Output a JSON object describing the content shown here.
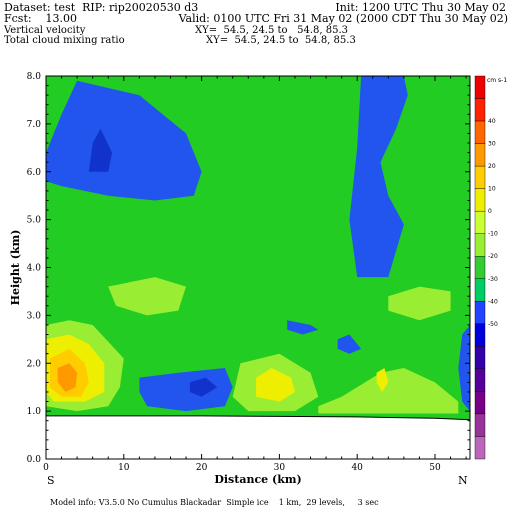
{
  "header": {
    "dataset": "Dataset: test  RIP: rip20020530 d3",
    "init": "Init: 1200 UTC Thu 30 May 02",
    "fcst": "Fcst:    13.00",
    "valid": "Valid: 0100 UTC Fri 31 May 02 (2000 CDT Thu 30 May 02)",
    "field1": "Vertical velocity",
    "xy1": "XY=  54.5, 24.5 to   54.8, 85.3",
    "field2": "Total cloud mixing ratio",
    "xy2": "XY=  54.5, 24.5 to  54.8, 85.3"
  },
  "footer": "Model info: V3.5.0 No Cumulus Blackadar  Simple ice    1 km,  29 levels,     3 sec",
  "colors": {
    "frame": "#000000",
    "terrain": "#ffffff",
    "background_field": "#22cc22"
  },
  "chart_data": {
    "type": "heatmap",
    "title": "Vertical velocity / Total cloud mixing ratio",
    "xlabel": "Distance (km)",
    "ylabel": "Height (km)",
    "xlim": [
      0,
      54.5
    ],
    "ylim": [
      0,
      8
    ],
    "x_ticks": [
      "0",
      "10",
      "20",
      "30",
      "40",
      "50"
    ],
    "y_ticks": [
      "0.0",
      "1.0",
      "2.0",
      "3.0",
      "4.0",
      "5.0",
      "6.0",
      "7.0",
      "8.0"
    ],
    "x_end_labels": {
      "left": "S",
      "right": "N"
    },
    "colorbar": {
      "units": "cm s-1",
      "labels": [
        "40",
        "30",
        "20",
        "10",
        "0",
        "-10",
        "-20",
        "-30",
        "-40",
        "-50"
      ],
      "colors": [
        "#ee0000",
        "#ff2200",
        "#ff6600",
        "#ff9900",
        "#ffcc00",
        "#eeee00",
        "#ccff33",
        "#99ee33",
        "#33cc33",
        "#00cc66",
        "#2244ff",
        "#0000dd",
        "#3300aa",
        "#550099",
        "#770088",
        "#993399",
        "#bb66bb"
      ]
    },
    "regions": [
      {
        "name": "downdraft-upper-left",
        "value": -15,
        "color": "#2255ee",
        "points": [
          [
            0,
            6.4
          ],
          [
            2,
            7.2
          ],
          [
            4,
            7.9
          ],
          [
            12,
            7.6
          ],
          [
            18,
            6.8
          ],
          [
            20,
            6.0
          ],
          [
            19,
            5.5
          ],
          [
            14,
            5.4
          ],
          [
            8,
            5.5
          ],
          [
            2,
            5.7
          ],
          [
            0,
            5.8
          ]
        ]
      },
      {
        "name": "downdraft-core-upper-left",
        "value": -25,
        "color": "#1133cc",
        "points": [
          [
            5.5,
            6.0
          ],
          [
            6,
            6.6
          ],
          [
            7,
            6.9
          ],
          [
            8.5,
            6.4
          ],
          [
            8,
            6.0
          ]
        ]
      },
      {
        "name": "downdraft-upper-right",
        "value": -15,
        "color": "#2255ee",
        "points": [
          [
            40.5,
            8.0
          ],
          [
            46,
            8.0
          ],
          [
            46.5,
            7.6
          ],
          [
            45,
            6.9
          ],
          [
            43,
            6.2
          ],
          [
            44,
            5.5
          ],
          [
            46,
            4.9
          ],
          [
            44,
            3.8
          ],
          [
            40,
            3.8
          ],
          [
            39,
            5.0
          ],
          [
            40,
            6.5
          ]
        ]
      },
      {
        "name": "updraft-weak-left",
        "value": 5,
        "color": "#99ee33",
        "points": [
          [
            8,
            3.6
          ],
          [
            14,
            3.8
          ],
          [
            18,
            3.6
          ],
          [
            17,
            3.1
          ],
          [
            13,
            3.0
          ],
          [
            9,
            3.2
          ]
        ]
      },
      {
        "name": "updraft-weak-right",
        "value": 5,
        "color": "#99ee33",
        "points": [
          [
            44,
            3.4
          ],
          [
            48,
            3.6
          ],
          [
            52,
            3.5
          ],
          [
            52,
            3.1
          ],
          [
            48,
            2.9
          ],
          [
            44,
            3.1
          ]
        ]
      },
      {
        "name": "updraft-low-left-outer",
        "value": 5,
        "color": "#99ee33",
        "points": [
          [
            0,
            2.8
          ],
          [
            3,
            2.9
          ],
          [
            6,
            2.8
          ],
          [
            10,
            2.1
          ],
          [
            9.5,
            1.5
          ],
          [
            8,
            1.1
          ],
          [
            4,
            1.0
          ],
          [
            0,
            1.1
          ]
        ]
      },
      {
        "name": "updraft-low-left-mid",
        "value": 15,
        "color": "#eeee00",
        "points": [
          [
            0,
            2.5
          ],
          [
            3,
            2.6
          ],
          [
            5.5,
            2.4
          ],
          [
            7.5,
            2.0
          ],
          [
            7.5,
            1.4
          ],
          [
            5,
            1.2
          ],
          [
            1,
            1.2
          ],
          [
            0,
            1.4
          ]
        ]
      },
      {
        "name": "updraft-low-left-inner",
        "value": 25,
        "color": "#ffcc00",
        "points": [
          [
            0.5,
            2.1
          ],
          [
            3,
            2.3
          ],
          [
            5,
            2.0
          ],
          [
            5.5,
            1.6
          ],
          [
            4.5,
            1.3
          ],
          [
            2,
            1.3
          ],
          [
            0.5,
            1.5
          ]
        ]
      },
      {
        "name": "updraft-low-left-core",
        "value": 35,
        "color": "#ff9900",
        "points": [
          [
            1.5,
            1.9
          ],
          [
            3,
            2.0
          ],
          [
            4,
            1.8
          ],
          [
            3.8,
            1.5
          ],
          [
            2.5,
            1.4
          ],
          [
            1.5,
            1.6
          ]
        ]
      },
      {
        "name": "updraft-low-center",
        "value": 5,
        "color": "#99ee33",
        "points": [
          [
            25,
            2.0
          ],
          [
            30,
            2.2
          ],
          [
            34,
            1.8
          ],
          [
            35,
            1.3
          ],
          [
            32,
            1.0
          ],
          [
            26,
            1.0
          ],
          [
            24,
            1.3
          ]
        ]
      },
      {
        "name": "updraft-low-center-inner",
        "value": 15,
        "color": "#eeee00",
        "points": [
          [
            27,
            1.7
          ],
          [
            29,
            1.9
          ],
          [
            31.5,
            1.7
          ],
          [
            32,
            1.4
          ],
          [
            30,
            1.2
          ],
          [
            27,
            1.3
          ]
        ]
      },
      {
        "name": "updraft-low-right",
        "value": 5,
        "color": "#99ee33",
        "points": [
          [
            35,
            1.1
          ],
          [
            38,
            1.3
          ],
          [
            43,
            1.8
          ],
          [
            46,
            1.9
          ],
          [
            50,
            1.6
          ],
          [
            53,
            1.2
          ],
          [
            53,
            0.95
          ],
          [
            35,
            0.95
          ]
        ]
      },
      {
        "name": "updraft-small-right",
        "value": 15,
        "color": "#eeee00",
        "points": [
          [
            42.5,
            1.8
          ],
          [
            43.5,
            1.9
          ],
          [
            44,
            1.6
          ],
          [
            43.2,
            1.4
          ],
          [
            42.5,
            1.6
          ]
        ]
      },
      {
        "name": "downdraft-low-center",
        "value": -15,
        "color": "#2255ee",
        "points": [
          [
            12,
            1.7
          ],
          [
            17,
            1.8
          ],
          [
            23,
            1.9
          ],
          [
            24,
            1.5
          ],
          [
            23,
            1.1
          ],
          [
            18,
            1.0
          ],
          [
            13,
            1.1
          ],
          [
            12,
            1.4
          ]
        ]
      },
      {
        "name": "downdraft-core-low-center",
        "value": -25,
        "color": "#1133cc",
        "points": [
          [
            18.5,
            1.6
          ],
          [
            20.5,
            1.7
          ],
          [
            22,
            1.5
          ],
          [
            20,
            1.3
          ],
          [
            18.5,
            1.4
          ]
        ]
      },
      {
        "name": "downdraft-small-1",
        "value": -15,
        "color": "#2255ee",
        "points": [
          [
            31,
            2.9
          ],
          [
            34,
            2.8
          ],
          [
            35,
            2.7
          ],
          [
            33,
            2.6
          ],
          [
            31,
            2.7
          ]
        ]
      },
      {
        "name": "downdraft-small-2",
        "value": -15,
        "color": "#2255ee",
        "points": [
          [
            37.5,
            2.5
          ],
          [
            39,
            2.6
          ],
          [
            40.5,
            2.3
          ],
          [
            39,
            2.2
          ],
          [
            37.5,
            2.3
          ]
        ]
      },
      {
        "name": "downdraft-right-edge",
        "value": -15,
        "color": "#2255ee",
        "points": [
          [
            53.5,
            2.6
          ],
          [
            54.5,
            2.8
          ],
          [
            54.5,
            1.0
          ],
          [
            53.5,
            1.2
          ],
          [
            53,
            1.9
          ]
        ]
      }
    ],
    "terrain": [
      [
        0,
        0.9
      ],
      [
        10,
        0.9
      ],
      [
        20,
        0.9
      ],
      [
        30,
        0.89
      ],
      [
        40,
        0.88
      ],
      [
        50,
        0.85
      ],
      [
        54.5,
        0.82
      ]
    ]
  }
}
